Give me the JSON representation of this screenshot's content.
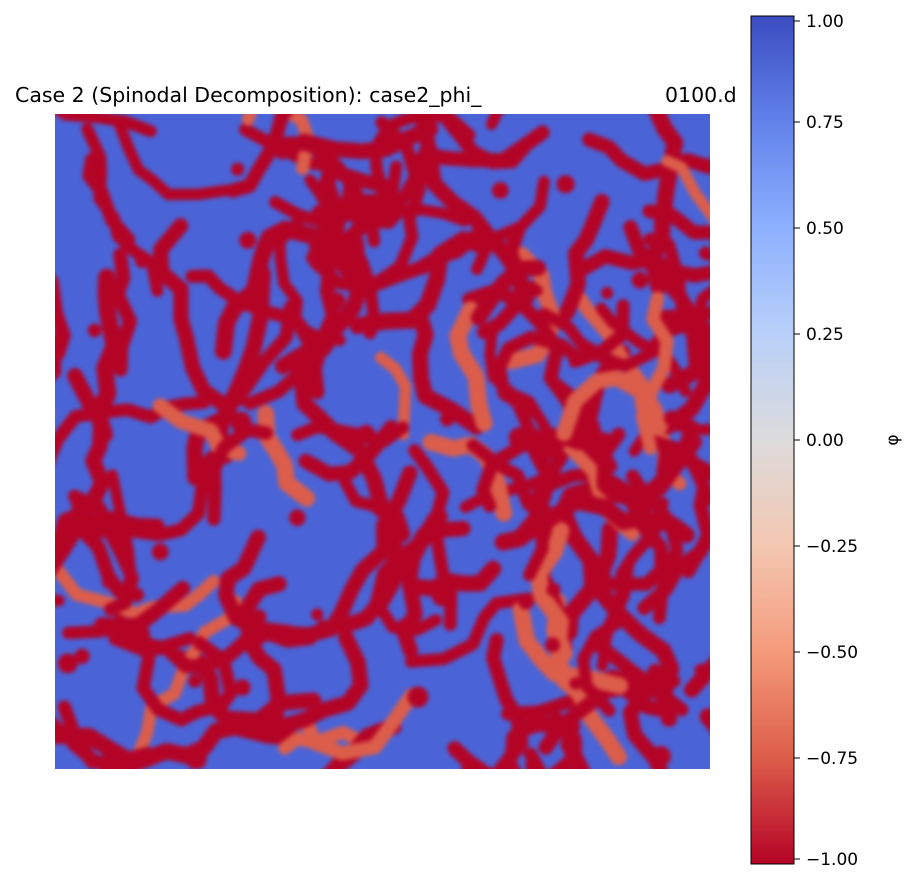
{
  "chart_data": {
    "type": "heatmap",
    "title_left": "Case 2 (Spinodal Decomposition): case2_phi_",
    "title_right": "0100.d",
    "colorbar": {
      "label": "φ",
      "range": [
        -1.0,
        1.0
      ],
      "ticks": [
        1.0,
        0.75,
        0.5,
        0.25,
        0.0,
        -0.25,
        -0.5,
        -0.75,
        -1.0
      ],
      "tick_labels": [
        "1.00",
        "0.75",
        "0.50",
        "0.25",
        "0.00",
        "−0.25",
        "−0.50",
        "−0.75",
        "−1.00"
      ],
      "colormap": "coolwarm (reversed)",
      "color_stops": [
        "#b40426",
        "#dc5d4a",
        "#f49a7b",
        "#f3c7b1",
        "#dddcdc",
        "#b9d0f9",
        "#8db0fe",
        "#6282ea",
        "#3b4cc0"
      ]
    },
    "axes": "off",
    "field": "phase field φ, labyrinthine spinodal pattern, values near ±1"
  }
}
